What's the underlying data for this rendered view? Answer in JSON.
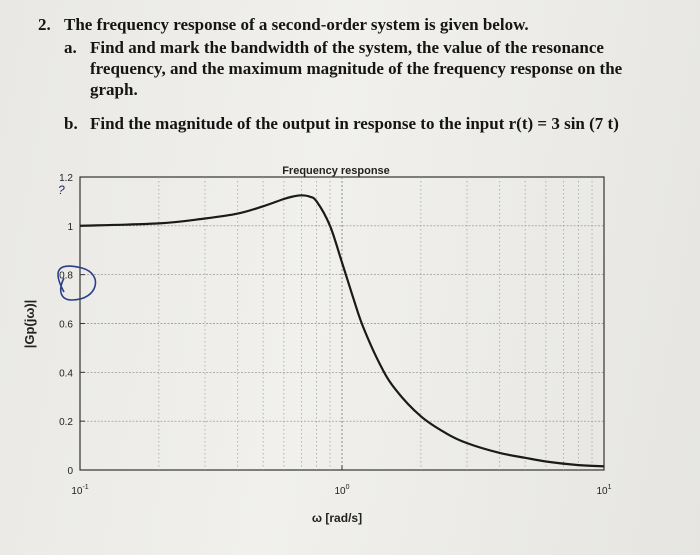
{
  "problem": {
    "number": "2.",
    "stem": "The frequency response of a second-order system is given below.",
    "parts": [
      {
        "letter": "a.",
        "text": "Find and mark the bandwidth of the system, the value of the resonance frequency, and the maximum magnitude of the frequency response on the graph."
      },
      {
        "letter": "b.",
        "text": "Find the magnitude of the output in response to the input r(t) = 3 sin (7 t)"
      }
    ]
  },
  "chart_data": {
    "type": "line",
    "title": "Frequency response",
    "xlabel": "ω [rad/s]",
    "ylabel": "|Gp(jω)|",
    "xscale": "log",
    "xlim": [
      0.1,
      10
    ],
    "ylim": [
      0,
      1.2
    ],
    "grid": true,
    "xticks": [
      {
        "value": 0.1,
        "base": "10",
        "exp": "-1"
      },
      {
        "value": 1,
        "base": "10",
        "exp": "0"
      },
      {
        "value": 10,
        "base": "10",
        "exp": "1"
      }
    ],
    "yticks": [
      {
        "value": 0,
        "label": "0"
      },
      {
        "value": 0.2,
        "label": "0.2"
      },
      {
        "value": 0.4,
        "label": "0.4"
      },
      {
        "value": 0.6,
        "label": "0.6"
      },
      {
        "value": 0.8,
        "label": "0.8"
      },
      {
        "value": 1,
        "label": "1"
      },
      {
        "value": 1.2,
        "label": "1.2"
      }
    ],
    "series": [
      {
        "x": [
          0.1,
          0.2,
          0.3,
          0.4,
          0.5,
          0.6,
          0.65,
          0.7,
          0.75,
          0.8,
          0.9,
          1.0,
          1.1,
          1.2,
          1.4,
          1.6,
          2,
          2.5,
          3,
          4,
          5,
          6,
          8,
          10
        ],
        "y": [
          1.0,
          1.01,
          1.03,
          1.05,
          1.08,
          1.11,
          1.12,
          1.125,
          1.12,
          1.1,
          1.0,
          0.85,
          0.71,
          0.59,
          0.43,
          0.33,
          0.22,
          0.15,
          0.11,
          0.07,
          0.05,
          0.035,
          0.02,
          0.015
        ]
      }
    ]
  },
  "annotations": {
    "handwritten_mark": "?"
  }
}
